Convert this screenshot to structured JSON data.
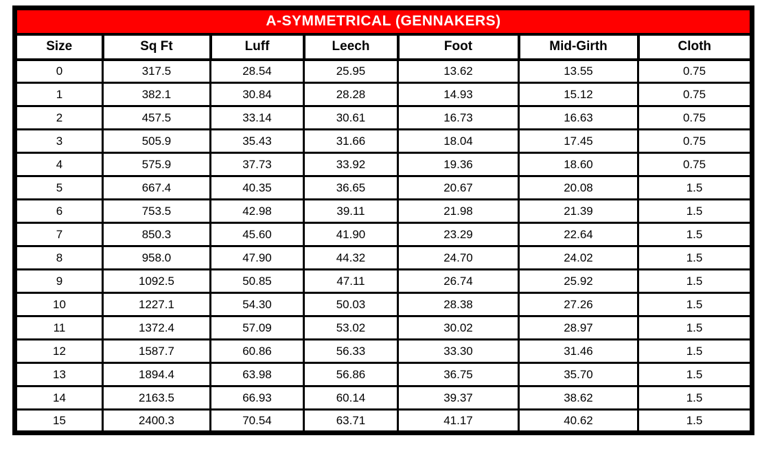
{
  "chart_data": {
    "type": "table",
    "title": "A-SYMMETRICAL (GENNAKERS)",
    "columns": [
      "Size",
      "Sq Ft",
      "Luff",
      "Leech",
      "Foot",
      "Mid-Girth",
      "Cloth"
    ],
    "rows": [
      [
        "0",
        "317.5",
        "28.54",
        "25.95",
        "13.62",
        "13.55",
        "0.75"
      ],
      [
        "1",
        "382.1",
        "30.84",
        "28.28",
        "14.93",
        "15.12",
        "0.75"
      ],
      [
        "2",
        "457.5",
        "33.14",
        "30.61",
        "16.73",
        "16.63",
        "0.75"
      ],
      [
        "3",
        "505.9",
        "35.43",
        "31.66",
        "18.04",
        "17.45",
        "0.75"
      ],
      [
        "4",
        "575.9",
        "37.73",
        "33.92",
        "19.36",
        "18.60",
        "0.75"
      ],
      [
        "5",
        "667.4",
        "40.35",
        "36.65",
        "20.67",
        "20.08",
        "1.5"
      ],
      [
        "6",
        "753.5",
        "42.98",
        "39.11",
        "21.98",
        "21.39",
        "1.5"
      ],
      [
        "7",
        "850.3",
        "45.60",
        "41.90",
        "23.29",
        "22.64",
        "1.5"
      ],
      [
        "8",
        "958.0",
        "47.90",
        "44.32",
        "24.70",
        "24.02",
        "1.5"
      ],
      [
        "9",
        "1092.5",
        "50.85",
        "47.11",
        "26.74",
        "25.92",
        "1.5"
      ],
      [
        "10",
        "1227.1",
        "54.30",
        "50.03",
        "28.38",
        "27.26",
        "1.5"
      ],
      [
        "11",
        "1372.4",
        "57.09",
        "53.02",
        "30.02",
        "28.97",
        "1.5"
      ],
      [
        "12",
        "1587.7",
        "60.86",
        "56.33",
        "33.30",
        "31.46",
        "1.5"
      ],
      [
        "13",
        "1894.4",
        "63.98",
        "56.86",
        "36.75",
        "35.70",
        "1.5"
      ],
      [
        "14",
        "2163.5",
        "66.93",
        "60.14",
        "39.37",
        "38.62",
        "1.5"
      ],
      [
        "15",
        "2400.3",
        "70.54",
        "63.71",
        "41.17",
        "40.62",
        "1.5"
      ]
    ],
    "layout": {
      "grid": "on",
      "title_position": "top-banner"
    }
  },
  "colors": {
    "banner_bg": "#FF0000",
    "banner_text": "#FFFFFF",
    "border": "#000000",
    "cell_bg": "#FFFFFF",
    "cell_text": "#000000",
    "page_bg": "#FFFFFF"
  }
}
